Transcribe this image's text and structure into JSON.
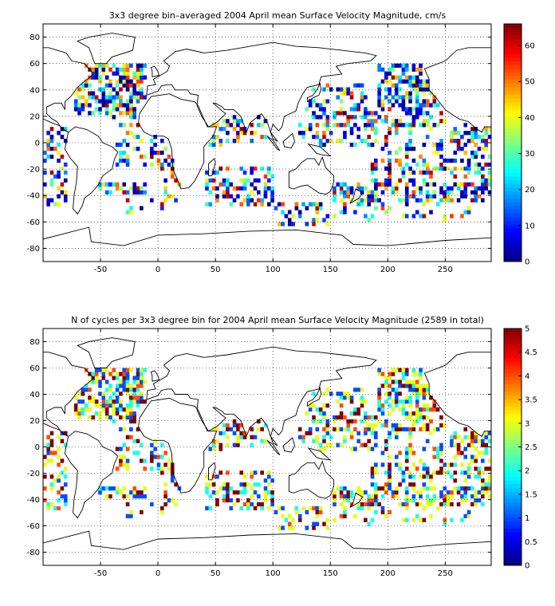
{
  "panels": [
    {
      "title": "3x3 degree bin–averaged 2004 April mean Surface Velocity Magnitude, cm/s",
      "colorbar_ticks": [
        "0",
        "10",
        "20",
        "30",
        "40",
        "50",
        "60"
      ],
      "colorbar_range": [
        0,
        66
      ],
      "colormap": "jet"
    },
    {
      "title": "N of cycles per 3x3 degree bin for 2004 April mean Surface Velocity Magnitude (2589 in total)",
      "colorbar_ticks": [
        "0",
        "0.5",
        "1",
        "1.5",
        "2",
        "2.5",
        "3",
        "3.5",
        "4",
        "4.5",
        "5"
      ],
      "colorbar_range": [
        0,
        5
      ],
      "colormap": "jet"
    }
  ],
  "x_ticks": [
    "-50",
    "0",
    "50",
    "100",
    "150",
    "200",
    "250"
  ],
  "y_ticks": [
    "80",
    "60",
    "40",
    "20",
    "0",
    "-20",
    "-40",
    "-60",
    "-80"
  ],
  "x_range": [
    -100,
    290
  ],
  "y_range": [
    -90,
    90
  ],
  "grid": true,
  "colors": {
    "coastline": "#000000",
    "grid": "#000000",
    "background": "#ffffff"
  }
}
